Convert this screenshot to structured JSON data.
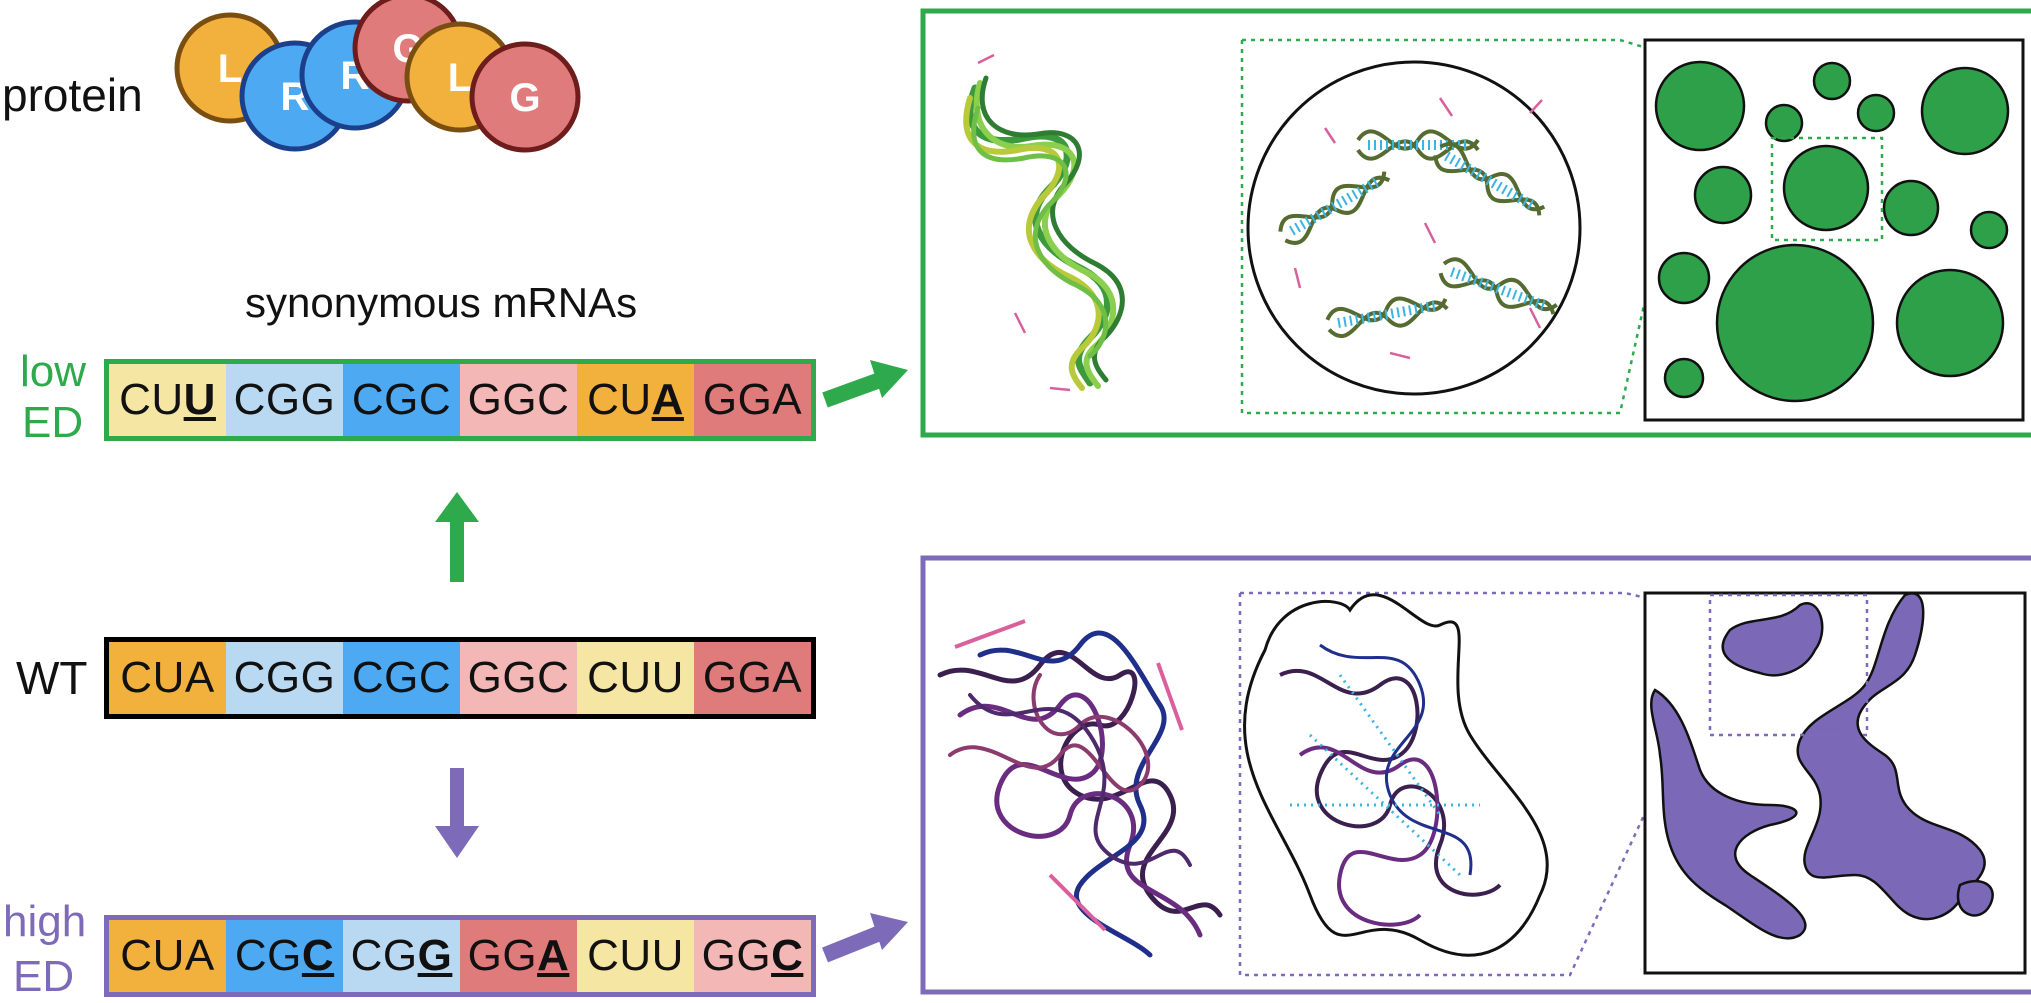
{
  "protein": {
    "label": "protein",
    "residues": [
      {
        "letter": "L",
        "color": "#f2b13d"
      },
      {
        "letter": "R",
        "color": "#4daaf2"
      },
      {
        "letter": "R",
        "color": "#4daaf2"
      },
      {
        "letter": "G",
        "color": "#e07b7b"
      },
      {
        "letter": "L",
        "color": "#f2b13d"
      },
      {
        "letter": "G",
        "color": "#e07b7b"
      }
    ]
  },
  "synonymous_label": "synonymous mRNAs",
  "rows": {
    "low": {
      "label_line1": "low",
      "label_line2": "ED",
      "color": "#2eaa4d",
      "codons": [
        {
          "pre": "CU",
          "mut": "U",
          "color": "#f6e6a4"
        },
        {
          "pre": "CGG",
          "mut": "",
          "color": "#b9d9f2"
        },
        {
          "pre": "CGC",
          "mut": "",
          "color": "#4daaf2"
        },
        {
          "pre": "GGC",
          "mut": "",
          "color": "#f3b8b6"
        },
        {
          "pre": "CU",
          "mut": "A",
          "color": "#f2b13d"
        },
        {
          "pre": "GGA",
          "mut": "",
          "color": "#e07b7b"
        }
      ]
    },
    "wt": {
      "label": "WT",
      "codons": [
        {
          "pre": "CUA",
          "mut": "",
          "color": "#f2b13d"
        },
        {
          "pre": "CGG",
          "mut": "",
          "color": "#b9d9f2"
        },
        {
          "pre": "CGC",
          "mut": "",
          "color": "#4daaf2"
        },
        {
          "pre": "GGC",
          "mut": "",
          "color": "#f3b8b6"
        },
        {
          "pre": "CUU",
          "mut": "",
          "color": "#f6e6a4"
        },
        {
          "pre": "GGA",
          "mut": "",
          "color": "#e07b7b"
        }
      ]
    },
    "high": {
      "label_line1": "high",
      "label_line2": "ED",
      "color": "#7d6ab8",
      "codons": [
        {
          "pre": "CUA",
          "mut": "",
          "color": "#f2b13d"
        },
        {
          "pre": "CG",
          "mut": "C",
          "color": "#4daaf2"
        },
        {
          "pre": "CG",
          "mut": "G",
          "color": "#b9d9f2"
        },
        {
          "pre": "GG",
          "mut": "A",
          "color": "#e07b7b"
        },
        {
          "pre": "CUU",
          "mut": "",
          "color": "#f6e6a4"
        },
        {
          "pre": "GG",
          "mut": "C",
          "color": "#f3b8b6"
        }
      ]
    }
  },
  "colors": {
    "green": "#2eaa4d",
    "green_fill": "#2ea04a",
    "purple": "#7d6ab8",
    "purple_fill": "#7b69b8",
    "pink_arrow": "#d9609d",
    "blue_dots": "#3bb4e0"
  }
}
